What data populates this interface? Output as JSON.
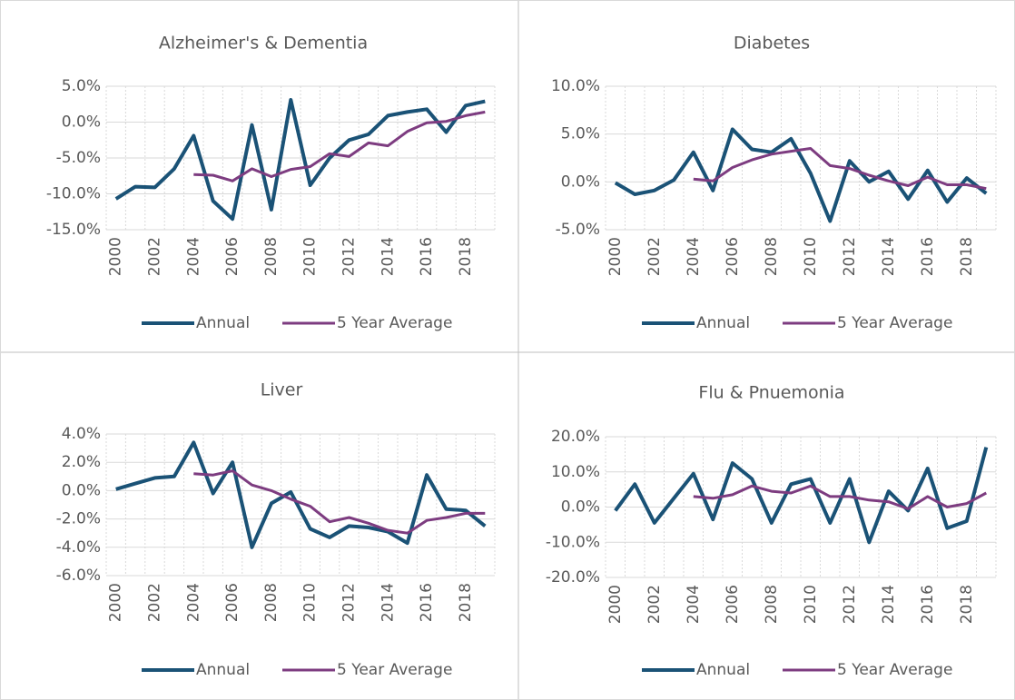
{
  "chart_data": [
    {
      "type": "line",
      "title": "Alzheimer's & Dementia",
      "categories": [
        "2000",
        null,
        "2002",
        null,
        "2004",
        null,
        "2006",
        null,
        "2008",
        null,
        "2010",
        null,
        "2012",
        null,
        "2014",
        null,
        "2016",
        null,
        "2018",
        null
      ],
      "series": [
        {
          "name": "Annual",
          "color": "#1a5276",
          "values": [
            -10.7,
            -9,
            -9.1,
            -6.5,
            -1.9,
            -11,
            -13.5,
            -0.4,
            -12.2,
            3.1,
            -8.8,
            -5,
            -2.5,
            -1.7,
            0.9,
            1.4,
            1.8,
            -1.4,
            2.3,
            2.9
          ]
        },
        {
          "name": "5 Year Average",
          "color": "#7d3c80",
          "values": [
            null,
            null,
            null,
            null,
            -7.3,
            -7.4,
            -8.2,
            -6.5,
            -7.6,
            -6.6,
            -6.2,
            -4.4,
            -4.8,
            -2.9,
            -3.3,
            -1.3,
            -0.1,
            0.1,
            0.9,
            1.4
          ]
        }
      ],
      "ylim": [
        -15,
        5
      ],
      "yticks": [
        {
          "value": -15,
          "label": "-15.0%"
        },
        {
          "value": -10,
          "label": "-10.0%"
        },
        {
          "value": -5,
          "label": "-5.0%"
        },
        {
          "value": 0,
          "label": "0.0%"
        },
        {
          "value": 5,
          "label": "5.0%"
        }
      ],
      "grid": true,
      "legend": "bottom"
    },
    {
      "type": "line",
      "title": "Diabetes",
      "categories": [
        "2000",
        null,
        "2002",
        null,
        "2004",
        null,
        "2006",
        null,
        "2008",
        null,
        "2010",
        null,
        "2012",
        null,
        "2014",
        null,
        "2016",
        null,
        "2018",
        null
      ],
      "series": [
        {
          "name": "Annual",
          "color": "#1a5276",
          "values": [
            -0.1,
            -1.3,
            -0.9,
            0.2,
            3.1,
            -0.9,
            5.5,
            3.4,
            3.1,
            4.5,
            0.9,
            -4.1,
            2.2,
            0.0,
            1.1,
            -1.8,
            1.2,
            -2.1,
            0.4,
            -1.2
          ]
        },
        {
          "name": "5 Year Average",
          "color": "#7d3c80",
          "values": [
            null,
            null,
            null,
            null,
            0.3,
            0.1,
            1.5,
            2.3,
            2.9,
            3.2,
            3.5,
            1.7,
            1.4,
            0.7,
            0.1,
            -0.4,
            0.5,
            -0.3,
            -0.3,
            -0.7
          ]
        }
      ],
      "ylim": [
        -5,
        10
      ],
      "yticks": [
        {
          "value": -5,
          "label": "-5.0%"
        },
        {
          "value": 0,
          "label": "0.0%"
        },
        {
          "value": 5,
          "label": "5.0%"
        },
        {
          "value": 10,
          "label": "10.0%"
        }
      ],
      "grid": true,
      "legend": "bottom"
    },
    {
      "type": "line",
      "title": "Liver",
      "categories": [
        "2000",
        null,
        "2002",
        null,
        "2004",
        null,
        "2006",
        null,
        "2008",
        null,
        "2010",
        null,
        "2012",
        null,
        "2014",
        null,
        "2016",
        null,
        "2018",
        null
      ],
      "series": [
        {
          "name": "Annual",
          "color": "#1a5276",
          "values": [
            0.1,
            0.5,
            0.9,
            1.0,
            3.4,
            -0.2,
            2.0,
            -4.0,
            -0.9,
            -0.1,
            -2.7,
            -3.3,
            -2.5,
            -2.6,
            -2.9,
            -3.7,
            1.1,
            -1.3,
            -1.4,
            -2.5
          ]
        },
        {
          "name": "5 Year Average",
          "color": "#7d3c80",
          "values": [
            null,
            null,
            null,
            null,
            1.2,
            1.1,
            1.4,
            0.4,
            0.0,
            -0.6,
            -1.1,
            -2.2,
            -1.9,
            -2.3,
            -2.8,
            -3.0,
            -2.1,
            -1.9,
            -1.6,
            -1.6
          ]
        }
      ],
      "ylim": [
        -6,
        4
      ],
      "yticks": [
        {
          "value": -6,
          "label": "-6.0%"
        },
        {
          "value": -4,
          "label": "-4.0%"
        },
        {
          "value": -2,
          "label": "-2.0%"
        },
        {
          "value": 0,
          "label": "0.0%"
        },
        {
          "value": 2,
          "label": "2.0%"
        },
        {
          "value": 4,
          "label": "4.0%"
        }
      ],
      "grid": true,
      "legend": "bottom"
    },
    {
      "type": "line",
      "title": "Flu & Pnuemonia",
      "categories": [
        "2000",
        null,
        "2002",
        null,
        "2004",
        null,
        "2006",
        null,
        "2008",
        null,
        "2010",
        null,
        "2012",
        null,
        "2014",
        null,
        "2016",
        null,
        "2018",
        null
      ],
      "series": [
        {
          "name": "Annual",
          "color": "#1a5276",
          "values": [
            -1,
            6.5,
            -4.5,
            2.5,
            9.5,
            -3.5,
            12.5,
            8,
            -4.5,
            6.5,
            8,
            -4.5,
            8,
            -10,
            4.5,
            -1,
            11,
            -6,
            -4,
            17
          ]
        },
        {
          "name": "5 Year Average",
          "color": "#7d3c80",
          "values": [
            null,
            null,
            null,
            null,
            3,
            2.5,
            3.5,
            6,
            4.5,
            4,
            6,
            3,
            3,
            2,
            1.5,
            -0.5,
            3,
            0,
            1,
            4
          ]
        }
      ],
      "ylim": [
        -20,
        20
      ],
      "yticks": [
        {
          "value": -20,
          "label": "-20.0%"
        },
        {
          "value": -10,
          "label": "-10.0%"
        },
        {
          "value": 0,
          "label": "0.0%"
        },
        {
          "value": 10,
          "label": "10.0%"
        },
        {
          "value": 20,
          "label": "20.0%"
        }
      ],
      "grid": true,
      "legend": "bottom"
    }
  ]
}
